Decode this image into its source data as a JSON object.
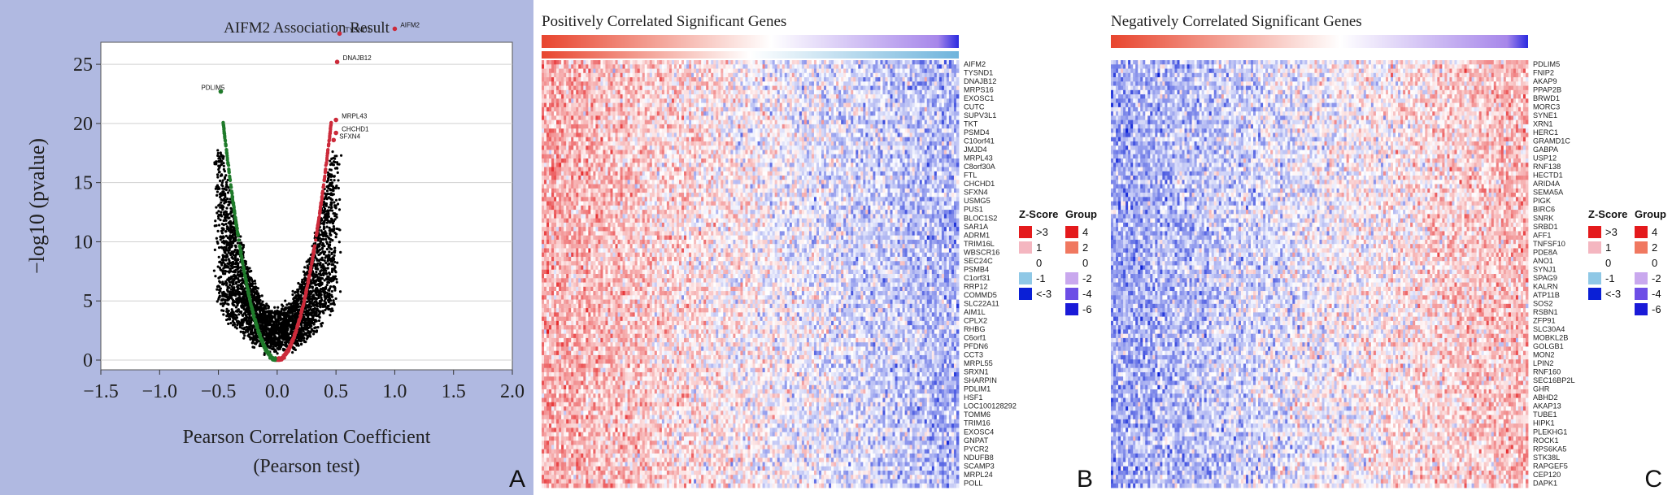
{
  "panels": {
    "a": {
      "letter": "A"
    },
    "b": {
      "letter": "B"
    },
    "c": {
      "letter": "C"
    }
  },
  "chart_data": [
    {
      "type": "scatter",
      "title": "AIFM2 Association Result",
      "xlabel": "Pearson Correlation Coefficient",
      "xlabel2": "(Pearson test)",
      "ylabel": "−log10 (pvalue)",
      "xlim": [
        -1.5,
        2.0
      ],
      "ylim": [
        0,
        27
      ],
      "xticks": [
        -1.5,
        -1.0,
        -0.5,
        0.0,
        0.5,
        1.0,
        1.5,
        2.0
      ],
      "xtick_labels": [
        "−1.5",
        "−1.0",
        "−0.5",
        "0.0",
        "0.5",
        "1.0",
        "1.5",
        "2.0"
      ],
      "yticks": [
        0,
        5,
        10,
        15,
        20,
        25
      ],
      "grid": true,
      "colors": {
        "positive": "#cc2a3a",
        "negative": "#1f7a2a",
        "neutral": "#000000"
      },
      "labeled_points": [
        {
          "label": "AIFM2",
          "x": 1.0,
          "y": 28.0
        },
        {
          "label": "TYSND1",
          "x": 0.53,
          "y": 27.6
        },
        {
          "label": "DNAJB12",
          "x": 0.51,
          "y": 25.2
        },
        {
          "label": "PDLIM5",
          "x": -0.48,
          "y": 22.7
        },
        {
          "label": "MRPL43",
          "x": 0.5,
          "y": 20.3
        },
        {
          "label": "CHCHD1",
          "x": 0.5,
          "y": 19.2
        },
        {
          "label": "SFXN4",
          "x": 0.48,
          "y": 18.6
        }
      ]
    },
    {
      "type": "heatmap",
      "title": "Positively Correlated Significant Genes",
      "rows": [
        "AIFM2",
        "TYSND1",
        "DNAJB12",
        "MRPS16",
        "EXOSC1",
        "CUTC",
        "SUPV3L1",
        "TKT",
        "PSMD4",
        "C10orf41",
        "JMJD4",
        "MRPL43",
        "C8orf30A",
        "FTL",
        "CHCHD1",
        "SFXN4",
        "USMG5",
        "PUS1",
        "BLOC1S2",
        "SAR1A",
        "ADRM1",
        "TRIM16L",
        "WBSCR16",
        "SEC24C",
        "PSMB4",
        "C1orf31",
        "RRP12",
        "COMMD5",
        "SLC22A11",
        "AIM1L",
        "CPLX2",
        "RHBG",
        "C6orf1",
        "PFDN6",
        "CCT3",
        "MRPL55",
        "SRXN1",
        "SHARPIN",
        "PDLIM1",
        "HSF1",
        "LOC100128292",
        "TOMM6",
        "TRIM16",
        "EXOSC4",
        "GNPAT",
        "PYCR2",
        "NDUFB8",
        "SCAMP3",
        "MRPL24",
        "POLL"
      ],
      "legend_zscore": {
        "title": "Z-Score",
        "labels": [
          ">3",
          "1",
          "0",
          "-1",
          "<-3"
        ],
        "colors": [
          "#e41a1c",
          "#f4b6c0",
          "#ffffff",
          "#8fc8e6",
          "#0a1fd6"
        ]
      },
      "legend_group": {
        "title": "Group",
        "labels": [
          "4",
          "2",
          "0",
          "-2",
          "-4",
          "-6"
        ],
        "colors": [
          "#e41a1c",
          "#f07860",
          "#ffffff",
          "#c9a8ee",
          "#6d4ee6",
          "#1a1ad8"
        ]
      }
    },
    {
      "type": "heatmap",
      "title": "Negatively Correlated Significant Genes",
      "rows": [
        "PDLIM5",
        "FNIP2",
        "AKAP9",
        "PPAP2B",
        "BRWD1",
        "MORC3",
        "SYNE1",
        "XRN1",
        "HERC1",
        "GRAMD1C",
        "GABPA",
        "USP12",
        "RNF138",
        "HECTD1",
        "ARID4A",
        "SEMA5A",
        "PIGK",
        "BIRC6",
        "SNRK",
        "SRBD1",
        "AFF1",
        "TNFSF10",
        "PDE8A",
        "ANO1",
        "SYNJ1",
        "SPAG9",
        "KALRN",
        "ATP11B",
        "SOS2",
        "RSBN1",
        "ZFP91",
        "SLC30A4",
        "MOBKL2B",
        "GOLGB1",
        "MON2",
        "LPIN2",
        "RNF160",
        "SEC16BP2L",
        "GHR",
        "ABHD2",
        "AKAP13",
        "TUBE1",
        "HIPK1",
        "PLEKHG1",
        "ROCK1",
        "RPS6KA5",
        "STK38L",
        "RAPGEF5",
        "CEP120",
        "DAPK1"
      ],
      "legend_zscore": {
        "title": "Z-Score",
        "labels": [
          ">3",
          "1",
          "0",
          "-1",
          "<-3"
        ],
        "colors": [
          "#e41a1c",
          "#f4b6c0",
          "#ffffff",
          "#8fc8e6",
          "#0a1fd6"
        ]
      },
      "legend_group": {
        "title": "Group",
        "labels": [
          "4",
          "2",
          "0",
          "-2",
          "-4",
          "-6"
        ],
        "colors": [
          "#e41a1c",
          "#f07860",
          "#ffffff",
          "#c9a8ee",
          "#6d4ee6",
          "#1a1ad8"
        ]
      }
    }
  ]
}
